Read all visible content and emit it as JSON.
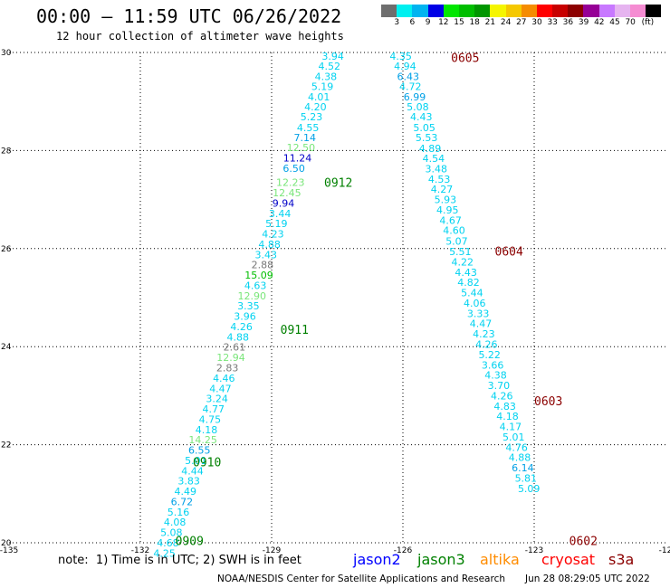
{
  "header": {
    "title": "00:00 – 11:59 UTC 06/26/2022",
    "subtitle": "12 hour collection of altimeter wave heights"
  },
  "colorscale": {
    "colors": [
      "#6e6e6e",
      "#00f0f0",
      "#00b4f0",
      "#0000e6",
      "#00e600",
      "#00be00",
      "#009600",
      "#f5f500",
      "#f5c800",
      "#f58c00",
      "#ff0000",
      "#c80000",
      "#8c0000",
      "#960096",
      "#c878ff",
      "#e6b4f0",
      "#f58cd2",
      "#000000"
    ],
    "labels": [
      "3",
      "6",
      "9",
      "12",
      "15",
      "18",
      "21",
      "24",
      "27",
      "30",
      "33",
      "36",
      "39",
      "42",
      "45",
      "70",
      "(ft)"
    ]
  },
  "axes": {
    "x_ticks": [
      "-135",
      "-132",
      "-129",
      "-126",
      "-123",
      "-12"
    ],
    "y_ticks": [
      "30",
      "28",
      "26",
      "24",
      "22",
      "20"
    ]
  },
  "chart_data": {
    "type": "map",
    "lon_range": [
      -135,
      -120
    ],
    "lat_range": [
      20,
      30
    ],
    "grid": true,
    "passes": [
      {
        "label": "0605",
        "label_lon": -124.9,
        "label_lat": 29.9,
        "label_color": "#8b0000"
      },
      {
        "label": "0604",
        "label_lon": -123.9,
        "label_lat": 25.95,
        "label_color": "#8b0000"
      },
      {
        "label": "0603",
        "label_lon": -123.0,
        "label_lat": 22.9,
        "label_color": "#8b0000"
      },
      {
        "label": "0602",
        "label_lon": -122.2,
        "label_lat": 20.05,
        "label_color": "#8b0000"
      },
      {
        "label": "0912",
        "label_lon": -127.8,
        "label_lat": 27.35,
        "label_color": "#008000"
      },
      {
        "label": "0911",
        "label_lon": -128.8,
        "label_lat": 24.35,
        "label_color": "#008000"
      },
      {
        "label": "0910",
        "label_lon": -130.8,
        "label_lat": 21.65,
        "label_color": "#008000"
      },
      {
        "label": "0909",
        "label_lon": -131.2,
        "label_lat": 20.05,
        "label_color": "#008000"
      }
    ],
    "observations": [
      {
        "lon": -126.05,
        "lat": 29.93,
        "value": "4.35",
        "color": "#00d2f0"
      },
      {
        "lon": -125.95,
        "lat": 29.72,
        "value": "4.94",
        "color": "#00d2f0"
      },
      {
        "lon": -125.88,
        "lat": 29.51,
        "value": "6.43",
        "color": "#00a0e6"
      },
      {
        "lon": -125.83,
        "lat": 29.31,
        "value": "4.72",
        "color": "#00d2f0"
      },
      {
        "lon": -125.73,
        "lat": 29.1,
        "value": "6.99",
        "color": "#00a0e6"
      },
      {
        "lon": -125.66,
        "lat": 28.89,
        "value": "5.08",
        "color": "#00d2f0"
      },
      {
        "lon": -125.58,
        "lat": 28.69,
        "value": "4.43",
        "color": "#00d2f0"
      },
      {
        "lon": -125.51,
        "lat": 28.47,
        "value": "5.05",
        "color": "#00d2f0"
      },
      {
        "lon": -125.46,
        "lat": 28.27,
        "value": "5.53",
        "color": "#00d2f0"
      },
      {
        "lon": -125.38,
        "lat": 28.04,
        "value": "4.89",
        "color": "#00d2f0"
      },
      {
        "lon": -125.3,
        "lat": 27.84,
        "value": "4.54",
        "color": "#00d2f0"
      },
      {
        "lon": -125.24,
        "lat": 27.63,
        "value": "3.48",
        "color": "#00d2f0"
      },
      {
        "lon": -125.17,
        "lat": 27.42,
        "value": "4.53",
        "color": "#00d2f0"
      },
      {
        "lon": -125.11,
        "lat": 27.21,
        "value": "4.27",
        "color": "#00d2f0"
      },
      {
        "lon": -125.03,
        "lat": 27.0,
        "value": "5.93",
        "color": "#00d2f0"
      },
      {
        "lon": -124.98,
        "lat": 26.79,
        "value": "4.95",
        "color": "#00d2f0"
      },
      {
        "lon": -124.91,
        "lat": 26.58,
        "value": "4.67",
        "color": "#00d2f0"
      },
      {
        "lon": -124.83,
        "lat": 26.37,
        "value": "4.60",
        "color": "#00d2f0"
      },
      {
        "lon": -124.77,
        "lat": 26.15,
        "value": "5.07",
        "color": "#00d2f0"
      },
      {
        "lon": -124.69,
        "lat": 25.94,
        "value": "5.51",
        "color": "#00d2f0"
      },
      {
        "lon": -124.64,
        "lat": 25.73,
        "value": "4.22",
        "color": "#00d2f0"
      },
      {
        "lon": -124.56,
        "lat": 25.52,
        "value": "4.43",
        "color": "#00d2f0"
      },
      {
        "lon": -124.5,
        "lat": 25.31,
        "value": "4.82",
        "color": "#00d2f0"
      },
      {
        "lon": -124.42,
        "lat": 25.1,
        "value": "5.44",
        "color": "#00d2f0"
      },
      {
        "lon": -124.36,
        "lat": 24.89,
        "value": "4.06",
        "color": "#00d2f0"
      },
      {
        "lon": -124.28,
        "lat": 24.68,
        "value": "3.33",
        "color": "#00d2f0"
      },
      {
        "lon": -124.22,
        "lat": 24.47,
        "value": "4.47",
        "color": "#00d2f0"
      },
      {
        "lon": -124.15,
        "lat": 24.26,
        "value": "4.23",
        "color": "#00d2f0"
      },
      {
        "lon": -124.09,
        "lat": 24.05,
        "value": "4.26",
        "color": "#00d2f0"
      },
      {
        "lon": -124.02,
        "lat": 23.84,
        "value": "5.22",
        "color": "#00d2f0"
      },
      {
        "lon": -123.95,
        "lat": 23.63,
        "value": "3.66",
        "color": "#00d2f0"
      },
      {
        "lon": -123.88,
        "lat": 23.42,
        "value": "4.38",
        "color": "#00d2f0"
      },
      {
        "lon": -123.81,
        "lat": 23.21,
        "value": "3.70",
        "color": "#00d2f0"
      },
      {
        "lon": -123.74,
        "lat": 23.0,
        "value": "4.26",
        "color": "#00d2f0"
      },
      {
        "lon": -123.67,
        "lat": 22.79,
        "value": "4.83",
        "color": "#00d2f0"
      },
      {
        "lon": -123.61,
        "lat": 22.58,
        "value": "4.18",
        "color": "#00d2f0"
      },
      {
        "lon": -123.54,
        "lat": 22.37,
        "value": "4.17",
        "color": "#00d2f0"
      },
      {
        "lon": -123.47,
        "lat": 22.16,
        "value": "5.01",
        "color": "#00d2f0"
      },
      {
        "lon": -123.4,
        "lat": 21.95,
        "value": "4.76",
        "color": "#00d2f0"
      },
      {
        "lon": -123.33,
        "lat": 21.74,
        "value": "4.88",
        "color": "#00d2f0"
      },
      {
        "lon": -123.26,
        "lat": 21.53,
        "value": "6.14",
        "color": "#00a0e6"
      },
      {
        "lon": -123.19,
        "lat": 21.32,
        "value": "5.81",
        "color": "#00d2f0"
      },
      {
        "lon": -123.12,
        "lat": 21.11,
        "value": "5.09",
        "color": "#00d2f0"
      },
      {
        "lon": -127.6,
        "lat": 29.93,
        "value": "3.94",
        "color": "#00d2f0"
      },
      {
        "lon": -127.68,
        "lat": 29.72,
        "value": "4.52",
        "color": "#00d2f0"
      },
      {
        "lon": -127.76,
        "lat": 29.51,
        "value": "4.38",
        "color": "#00d2f0"
      },
      {
        "lon": -127.84,
        "lat": 29.31,
        "value": "5.19",
        "color": "#00d2f0"
      },
      {
        "lon": -127.92,
        "lat": 29.1,
        "value": "4.01",
        "color": "#00d2f0"
      },
      {
        "lon": -128.0,
        "lat": 28.89,
        "value": "4.20",
        "color": "#00d2f0"
      },
      {
        "lon": -128.09,
        "lat": 28.69,
        "value": "5.23",
        "color": "#00d2f0"
      },
      {
        "lon": -128.17,
        "lat": 28.47,
        "value": "4.55",
        "color": "#00d2f0"
      },
      {
        "lon": -128.24,
        "lat": 28.27,
        "value": "7.14",
        "color": "#00a0e6"
      },
      {
        "lon": -128.33,
        "lat": 28.06,
        "value": "12.50",
        "color": "#7ae67a"
      },
      {
        "lon": -128.41,
        "lat": 27.85,
        "value": "11.24",
        "color": "#0000c8"
      },
      {
        "lon": -128.49,
        "lat": 27.64,
        "value": "6.50",
        "color": "#00a0e6"
      },
      {
        "lon": -128.57,
        "lat": 27.35,
        "value": "12.23",
        "color": "#7ae67a"
      },
      {
        "lon": -128.65,
        "lat": 27.14,
        "value": "12.45",
        "color": "#7ae67a"
      },
      {
        "lon": -128.73,
        "lat": 26.93,
        "value": "9.94",
        "color": "#0000c8"
      },
      {
        "lon": -128.81,
        "lat": 26.72,
        "value": "3.44",
        "color": "#00d2f0"
      },
      {
        "lon": -128.89,
        "lat": 26.51,
        "value": "5.19",
        "color": "#00d2f0"
      },
      {
        "lon": -128.97,
        "lat": 26.3,
        "value": "4.23",
        "color": "#00d2f0"
      },
      {
        "lon": -129.05,
        "lat": 26.09,
        "value": "4.88",
        "color": "#00d2f0"
      },
      {
        "lon": -129.13,
        "lat": 25.88,
        "value": "3.43",
        "color": "#00d2f0"
      },
      {
        "lon": -129.21,
        "lat": 25.67,
        "value": "2.88",
        "color": "#787878"
      },
      {
        "lon": -129.29,
        "lat": 25.46,
        "value": "15.09",
        "color": "#00be00"
      },
      {
        "lon": -129.37,
        "lat": 25.25,
        "value": "4.63",
        "color": "#00d2f0"
      },
      {
        "lon": -129.45,
        "lat": 25.04,
        "value": "12.90",
        "color": "#7ae67a"
      },
      {
        "lon": -129.53,
        "lat": 24.83,
        "value": "3.35",
        "color": "#00d2f0"
      },
      {
        "lon": -129.61,
        "lat": 24.62,
        "value": "3.96",
        "color": "#00d2f0"
      },
      {
        "lon": -129.69,
        "lat": 24.41,
        "value": "4.26",
        "color": "#00d2f0"
      },
      {
        "lon": -129.77,
        "lat": 24.2,
        "value": "4.88",
        "color": "#00d2f0"
      },
      {
        "lon": -129.85,
        "lat": 23.99,
        "value": "2.61",
        "color": "#787878"
      },
      {
        "lon": -129.93,
        "lat": 23.78,
        "value": "12.94",
        "color": "#7ae67a"
      },
      {
        "lon": -130.01,
        "lat": 23.57,
        "value": "2.83",
        "color": "#787878"
      },
      {
        "lon": -130.09,
        "lat": 23.36,
        "value": "4.46",
        "color": "#00d2f0"
      },
      {
        "lon": -130.17,
        "lat": 23.15,
        "value": "4.47",
        "color": "#00d2f0"
      },
      {
        "lon": -130.25,
        "lat": 22.94,
        "value": "3.24",
        "color": "#00d2f0"
      },
      {
        "lon": -130.33,
        "lat": 22.73,
        "value": "4.77",
        "color": "#00d2f0"
      },
      {
        "lon": -130.41,
        "lat": 22.52,
        "value": "4.75",
        "color": "#00d2f0"
      },
      {
        "lon": -130.49,
        "lat": 22.31,
        "value": "4.18",
        "color": "#00d2f0"
      },
      {
        "lon": -130.57,
        "lat": 22.1,
        "value": "14.25",
        "color": "#7ae67a"
      },
      {
        "lon": -130.65,
        "lat": 21.89,
        "value": "6.55",
        "color": "#00a0e6"
      },
      {
        "lon": -130.73,
        "lat": 21.68,
        "value": "5.01",
        "color": "#00d2f0"
      },
      {
        "lon": -130.81,
        "lat": 21.47,
        "value": "4.44",
        "color": "#00d2f0"
      },
      {
        "lon": -130.89,
        "lat": 21.26,
        "value": "3.83",
        "color": "#00d2f0"
      },
      {
        "lon": -130.97,
        "lat": 21.05,
        "value": "4.49",
        "color": "#00d2f0"
      },
      {
        "lon": -131.05,
        "lat": 20.84,
        "value": "6.72",
        "color": "#00a0e6"
      },
      {
        "lon": -131.13,
        "lat": 20.63,
        "value": "5.16",
        "color": "#00d2f0"
      },
      {
        "lon": -131.21,
        "lat": 20.42,
        "value": "4.08",
        "color": "#00d2f0"
      },
      {
        "lon": -131.29,
        "lat": 20.21,
        "value": "5.08",
        "color": "#00d2f0"
      },
      {
        "lon": -131.37,
        "lat": 20.0,
        "value": "4.68",
        "color": "#00d2f0"
      },
      {
        "lon": -131.45,
        "lat": 19.79,
        "value": "4.25",
        "color": "#00d2f0"
      }
    ]
  },
  "footer": {
    "note": "note:  1) Time is in UTC; 2) SWH is in feet",
    "missions": [
      {
        "name": "jason2",
        "color": "#0000ff"
      },
      {
        "name": "jason3",
        "color": "#008000"
      },
      {
        "name": "altika",
        "color": "#ff8c00"
      },
      {
        "name": "cryosat",
        "color": "#ff0000"
      },
      {
        "name": "s3a",
        "color": "#8b0000"
      }
    ],
    "credit": "NOAA/NESDIS Center for Satellite Applications and Research",
    "timestamp": "Jun 28 08:29:05 UTC 2022"
  }
}
